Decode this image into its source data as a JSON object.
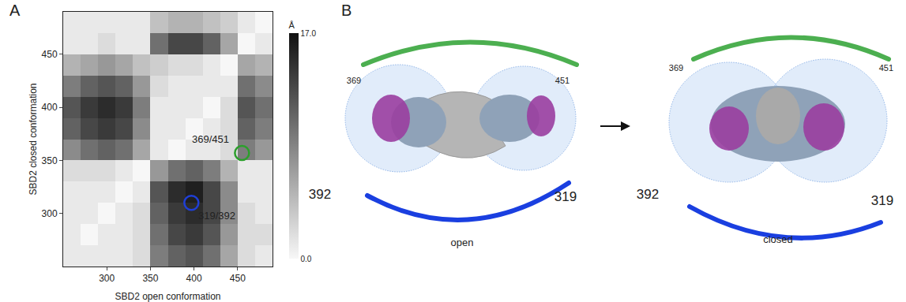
{
  "chart_data": {
    "type": "heatmap",
    "x": [
      260,
      280,
      300,
      320,
      340,
      360,
      380,
      400,
      420,
      440,
      460,
      480
    ],
    "y": [
      260,
      280,
      300,
      320,
      340,
      360,
      380,
      400,
      420,
      440,
      460,
      480
    ],
    "z": [
      [
        1,
        1,
        1,
        1,
        2,
        9,
        11,
        12,
        10,
        6,
        2,
        1
      ],
      [
        1,
        0,
        1,
        1,
        2,
        10,
        13,
        14,
        12,
        7,
        2,
        2
      ],
      [
        1,
        1,
        0,
        1,
        2,
        11,
        14,
        15,
        13,
        8,
        2,
        1
      ],
      [
        1,
        1,
        1,
        0,
        1,
        12,
        15,
        16,
        13,
        8,
        1,
        1
      ],
      [
        2,
        2,
        2,
        1,
        0,
        7,
        10,
        11,
        9,
        5,
        1,
        1
      ],
      [
        8,
        10,
        11,
        10,
        6,
        1,
        0,
        1,
        1,
        2,
        9,
        7
      ],
      [
        11,
        13,
        14,
        13,
        8,
        1,
        1,
        0,
        1,
        2,
        11,
        9
      ],
      [
        12,
        14,
        15,
        14,
        9,
        1,
        1,
        1,
        0,
        2,
        12,
        10
      ],
      [
        9,
        11,
        12,
        11,
        7,
        2,
        1,
        1,
        1,
        1,
        10,
        8
      ],
      [
        5,
        6,
        7,
        6,
        4,
        3,
        2,
        2,
        1,
        0,
        6,
        5
      ],
      [
        1,
        1,
        2,
        1,
        1,
        10,
        13,
        13,
        11,
        6,
        0,
        1
      ],
      [
        1,
        1,
        1,
        1,
        1,
        4,
        5,
        5,
        4,
        3,
        1,
        0
      ]
    ],
    "xlim": [
      250,
      490
    ],
    "ylim": [
      250,
      490
    ],
    "xticks": [
      300,
      350,
      400,
      450
    ],
    "yticks": [
      300,
      350,
      400,
      450
    ],
    "x_label": "SBD2 open conformation",
    "y_label": "SBD2 closed conformation",
    "colorbar": {
      "title": "Å",
      "range": [
        0,
        17
      ],
      "ticks": [
        {
          "value": 0,
          "label": "0.0"
        },
        {
          "value": 17,
          "label": "17.0"
        }
      ]
    },
    "annotations": [
      {
        "text": "369/451",
        "x": 455,
        "y": 357,
        "color": "#2ca02c"
      },
      {
        "text": "319/392",
        "x": 397,
        "y": 310,
        "color": "#1f3fd6"
      }
    ]
  },
  "panel_labels": [
    "A",
    "B"
  ],
  "diagram": {
    "states": [
      {
        "label": "open",
        "top_left": "369",
        "top_right": "451",
        "bottom_left": "392",
        "bottom_right": "319"
      },
      {
        "label": "closed",
        "top_left": "369",
        "top_right": "451",
        "bottom_left": "392",
        "bottom_right": "319"
      }
    ]
  }
}
